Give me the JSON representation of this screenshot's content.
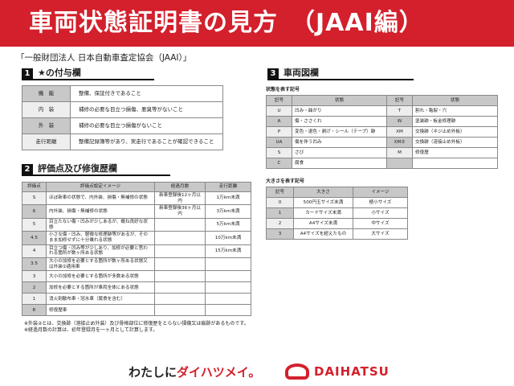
{
  "title": "車両状態証明書の見方　（JAAI編）",
  "subtitle": "「一般財団法人 日本自動車査定協会（JAAI）」",
  "section1": {
    "num": "1",
    "title": "★の付与欄",
    "rows": [
      {
        "k": "機　能",
        "v": "整備、保証付きであること"
      },
      {
        "k": "内　装",
        "v": "補修の必要な目立つ損傷、悪臭等がないこと"
      },
      {
        "k": "外　装",
        "v": "補修の必要な目立つ損傷がないこと"
      },
      {
        "k": "走行距離",
        "v": "整備記録簿等があり、実走行であることが確認できること"
      }
    ]
  },
  "section2": {
    "num": "2",
    "title": "評価点及び修復歴欄",
    "headers": [
      "評価点",
      "評価点設定イメージ",
      "経過月数",
      "走行距離"
    ],
    "rows": [
      [
        "S",
        "ほぼ新車の状態で、内外装、損傷・無補修の状態",
        "新車登録後12ヶ月以内",
        "1万km未満"
      ],
      [
        "6",
        "内外装、損傷・無補修の状態",
        "新車登録後36ヶ月以内",
        "3万km未満"
      ],
      [
        "5",
        "目立たない傷・凹みが少しあるが、概ね良好な状態",
        "",
        "5万km未満"
      ],
      [
        "4.5",
        "小さな傷・凹み、軽微な修理跡等があるが、そのまま加修せずに十分乗れる状態",
        "",
        "10万km未満"
      ],
      [
        "4",
        "目立つ傷・凹み等が少しあり、加修が必要と思われる箇所が数ヶ所ある状態",
        "",
        "15万km未満"
      ],
      [
        "3.5",
        "大小の加修を必要とする箇所が数ヶ所ある状態又は外装②適用車",
        "",
        ""
      ],
      [
        "3",
        "大小の加修を必要とする箇所が多数ある状態",
        "",
        ""
      ],
      [
        "2",
        "加修を必要とする箇所が車両全体にある状態",
        "",
        ""
      ],
      [
        "1",
        "消火剤散布車・冠水車（腐食を含む）",
        "",
        ""
      ],
      [
        "R",
        "修復歴車",
        "",
        ""
      ]
    ],
    "notes": [
      "※外装②とは、交換跡（溶接止め外装）及び骨格部位に修復歴をとらない損傷又は痕跡があるものです。",
      "※経過月数の計算は、初年登録月を一ヶ月として計算します。"
    ]
  },
  "section3": {
    "num": "3",
    "title": "車両図欄",
    "state_label": "状態を表す記号",
    "state_headers": [
      "記号",
      "状態",
      "記号",
      "状態"
    ],
    "state_rows": [
      [
        "U",
        "凹み・曲がり",
        "T",
        "割れ・亀裂・穴"
      ],
      [
        "A",
        "傷・ささくれ",
        "W",
        "塗装跡・板金修理跡"
      ],
      [
        "P",
        "変色・退色・剥げ・シール（テープ）跡",
        "XM",
        "交換跡（ネジ止め外板）"
      ],
      [
        "UA",
        "傷を伴う凹み",
        "XM②",
        "交換跡（溶接止め外板）"
      ],
      [
        "S",
        "さび",
        "M",
        "修復歴"
      ],
      [
        "C",
        "腐食",
        "",
        ""
      ]
    ],
    "size_label": "大きさを表す記号",
    "size_headers": [
      "記号",
      "大きさ",
      "イメージ"
    ],
    "size_rows": [
      [
        "0",
        "500円玉サイズ未満",
        "極小サイズ"
      ],
      [
        "1",
        "カードサイズ未満",
        "小サイズ"
      ],
      [
        "2",
        "A4サイズ未満",
        "中サイズ"
      ],
      [
        "3",
        "A4サイズを超えたもの",
        "大サイズ"
      ]
    ]
  },
  "footer": {
    "slogan_a": "わたしに",
    "slogan_b": "ダイハツメイ。",
    "brand": "DAIHATSU"
  },
  "colors": {
    "brand_red": "#d3202c"
  }
}
